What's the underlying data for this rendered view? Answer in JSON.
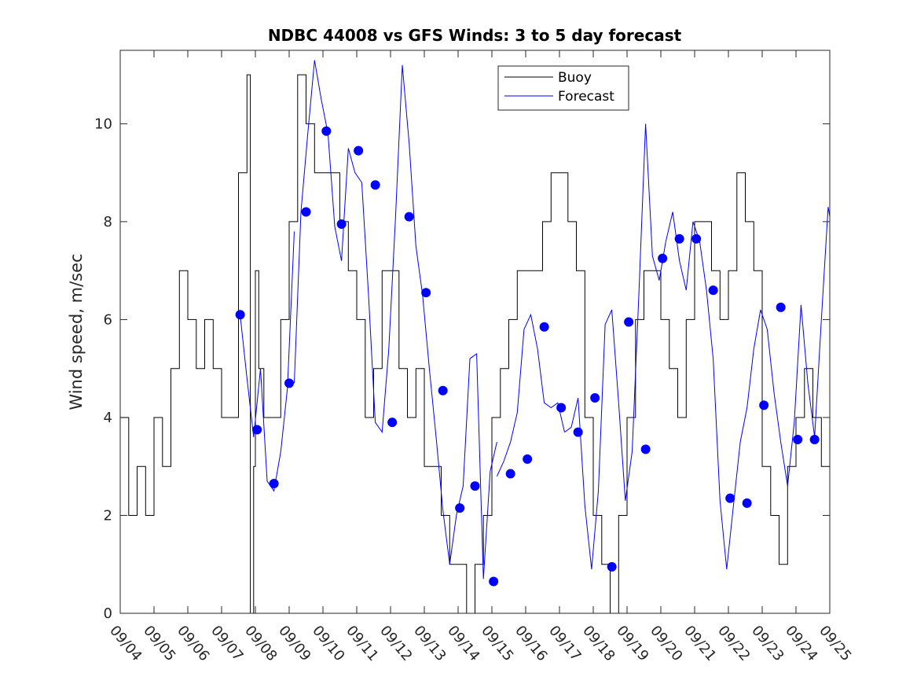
{
  "chart_data": {
    "type": "line",
    "title": "NDBC 44008 vs GFS Winds: 3 to 5 day forecast",
    "xlabel": "",
    "ylabel": "Wind speed, m/sec",
    "xlim": [
      0,
      21
    ],
    "ylim": [
      0,
      11.5
    ],
    "x_unit": "days since 09/04 00:00",
    "xticks": [
      0,
      1,
      2,
      3,
      4,
      5,
      6,
      7,
      8,
      9,
      10,
      11,
      12,
      13,
      14,
      15,
      16,
      17,
      18,
      19,
      20,
      21
    ],
    "xtick_labels": [
      "09/04",
      "09/05",
      "09/06",
      "09/07",
      "09/08",
      "09/09",
      "09/10",
      "09/11",
      "09/12",
      "09/13",
      "09/14",
      "09/15",
      "09/16",
      "09/17",
      "09/18",
      "09/19",
      "09/20",
      "09/21",
      "09/22",
      "09/23",
      "09/24",
      "09/25"
    ],
    "yticks": [
      0,
      2,
      4,
      6,
      8,
      10
    ],
    "ytick_labels": [
      "0",
      "2",
      "4",
      "6",
      "8",
      "10"
    ],
    "legend": {
      "position": "top-center",
      "entries": [
        "Buoy",
        "Forecast"
      ]
    },
    "colors": {
      "buoy": "#000000",
      "forecast": "#0000ff",
      "markers": "#0000ff"
    },
    "series": [
      {
        "name": "Buoy",
        "x": [
          0.0,
          0.25,
          0.5,
          0.75,
          1.0,
          1.25,
          1.5,
          1.75,
          2.0,
          2.25,
          2.5,
          2.75,
          3.0,
          3.25,
          3.5,
          3.75,
          3.85,
          3.95,
          4.0,
          4.1,
          4.25,
          4.5,
          4.75,
          5.0,
          5.25,
          5.5,
          5.75,
          6.0,
          6.25,
          6.5,
          6.75,
          7.0,
          7.25,
          7.5,
          7.75,
          8.0,
          8.25,
          8.5,
          8.75,
          9.0,
          9.25,
          9.5,
          9.75,
          10.0,
          10.25,
          10.5,
          10.75,
          11.0,
          11.25,
          11.5,
          11.75,
          12.0,
          12.25,
          12.5,
          12.75,
          13.0,
          13.25,
          13.5,
          13.75,
          14.0,
          14.25,
          14.5,
          14.75,
          15.0,
          15.25,
          15.5,
          15.75,
          16.0,
          16.25,
          16.5,
          16.75,
          17.0,
          17.25,
          17.5,
          17.75,
          18.0,
          18.25,
          18.5,
          18.75,
          19.0,
          19.25,
          19.5,
          19.75,
          20.0,
          20.25,
          20.5,
          20.75,
          21.0
        ],
        "values": [
          4,
          2,
          3,
          2,
          4,
          3,
          5,
          7,
          6,
          5,
          6,
          5,
          4,
          4,
          9,
          11,
          0,
          3,
          7,
          5,
          4,
          4,
          6,
          8,
          11,
          10,
          9,
          9,
          9,
          8,
          7,
          6,
          4,
          5,
          7,
          7,
          5,
          4,
          5,
          3,
          3,
          2,
          1,
          1,
          0,
          1,
          2,
          4,
          5,
          6,
          7,
          7,
          7,
          8,
          9,
          9,
          8,
          7,
          4,
          2,
          1,
          0,
          2,
          4,
          6,
          7,
          7,
          6,
          5,
          4,
          6,
          8,
          8,
          7,
          6,
          7,
          9,
          8,
          7,
          3,
          2,
          1,
          3,
          4,
          5,
          4,
          3,
          3
        ]
      },
      {
        "name": "Forecast",
        "segments": [
          {
            "x": [
              3.55,
              3.75,
              3.95,
              4.15,
              4.35,
              4.55,
              4.75,
              4.95,
              5.15
            ],
            "values": [
              6.1,
              4.8,
              3.6,
              5.0,
              2.7,
              2.5,
              3.3,
              4.6,
              7.8
            ]
          },
          {
            "x": [
              5.15,
              5.35,
              5.55,
              5.75,
              5.95,
              6.15,
              6.35,
              6.55,
              6.75,
              6.95,
              7.15
            ],
            "values": [
              4.7,
              8.2,
              9.8,
              11.3,
              10.5,
              9.8,
              7.9,
              7.2,
              9.5,
              9.0,
              8.8
            ]
          },
          {
            "x": [
              7.15,
              7.35,
              7.55,
              7.75,
              7.95,
              8.15,
              8.35,
              8.55,
              8.75,
              8.95,
              9.15
            ],
            "values": [
              8.8,
              6.5,
              3.9,
              3.7,
              5.4,
              8.1,
              11.2,
              9.6,
              7.5,
              6.5,
              5.0
            ]
          },
          {
            "x": [
              9.15,
              9.35,
              9.55,
              9.75,
              9.95,
              10.15,
              10.35,
              10.55,
              10.75,
              10.95,
              11.15
            ],
            "values": [
              5.0,
              3.6,
              2.1,
              1.0,
              2.0,
              2.6,
              5.2,
              5.3,
              0.7,
              2.9,
              3.5
            ]
          },
          {
            "x": [
              11.15,
              11.35,
              11.55,
              11.75,
              11.95,
              12.15,
              12.35,
              12.55,
              12.75,
              12.95,
              13.15
            ],
            "values": [
              2.8,
              3.1,
              3.5,
              4.1,
              5.8,
              6.1,
              5.4,
              4.3,
              4.2,
              4.3,
              3.7
            ]
          },
          {
            "x": [
              13.15,
              13.35,
              13.55,
              13.75,
              13.95,
              14.15,
              14.35,
              14.55,
              14.75,
              14.95,
              15.15
            ],
            "values": [
              3.7,
              3.8,
              4.4,
              2.2,
              0.9,
              2.5,
              5.9,
              6.2,
              4.3,
              2.3,
              3.3
            ]
          },
          {
            "x": [
              15.15,
              15.35,
              15.55,
              15.75,
              15.95,
              16.15,
              16.35,
              16.55,
              16.75,
              16.95,
              17.15
            ],
            "values": [
              3.3,
              6.5,
              10.0,
              7.3,
              6.8,
              7.6,
              8.2,
              7.2,
              6.6,
              8.0,
              7.6
            ]
          },
          {
            "x": [
              17.15,
              17.35,
              17.55,
              17.75,
              17.95,
              18.15,
              18.35,
              18.55,
              18.75,
              18.95,
              19.15
            ],
            "values": [
              7.6,
              6.6,
              5.2,
              2.3,
              0.9,
              2.2,
              3.5,
              4.2,
              5.4,
              6.2,
              5.8
            ]
          },
          {
            "x": [
              19.15,
              19.35,
              19.55,
              19.75,
              19.95,
              20.15,
              20.35,
              20.55,
              20.75,
              20.95,
              21.0
            ],
            "values": [
              5.8,
              4.5,
              3.5,
              2.6,
              3.9,
              6.3,
              4.7,
              3.6,
              6.0,
              8.3,
              8.1
            ]
          }
        ]
      }
    ],
    "markers": {
      "name": "Forecast verification points",
      "x": [
        3.55,
        4.05,
        4.55,
        5.0,
        5.5,
        6.1,
        6.55,
        7.05,
        7.55,
        8.05,
        8.55,
        9.05,
        9.55,
        10.05,
        10.5,
        11.05,
        11.55,
        12.05,
        12.55,
        13.05,
        13.55,
        14.05,
        14.55,
        15.05,
        15.55,
        16.05,
        16.55,
        17.05,
        17.55,
        18.05,
        18.55,
        19.05,
        19.55,
        20.05,
        20.55
      ],
      "values": [
        6.1,
        3.75,
        2.65,
        4.7,
        8.2,
        9.85,
        7.95,
        9.45,
        8.75,
        3.9,
        8.1,
        6.55,
        4.55,
        2.15,
        2.6,
        0.65,
        2.85,
        3.15,
        5.85,
        4.2,
        3.7,
        4.4,
        0.95,
        5.95,
        3.35,
        7.25,
        7.65,
        7.65,
        6.6,
        2.35,
        2.25,
        4.25,
        6.25,
        3.55,
        3.55
      ]
    }
  }
}
